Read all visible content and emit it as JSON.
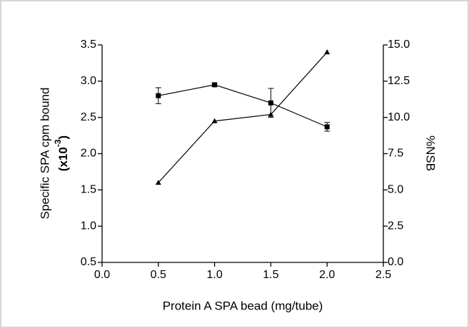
{
  "chart_data": {
    "type": "line",
    "x_label": "Protein A SPA bead (mg/tube)",
    "y_label": "Specific SPA cpm bound",
    "y_multiplier": "(x10",
    "y_multiplier_exp": "-3",
    "y_multiplier_close": ")",
    "y2_label": "%NSB",
    "x": [
      0.5,
      1.0,
      1.5,
      2.0
    ],
    "series": [
      {
        "color": "#000000",
        "marker": "square",
        "values": [
          2.8,
          2.95,
          2.7,
          2.37
        ],
        "errors": [
          0.11,
          0.02,
          0.2,
          0.06
        ]
      },
      {
        "color": "#000000",
        "marker": "triangle",
        "axis": "y2",
        "values": [
          5.5,
          9.75,
          10.2,
          14.5
        ]
      }
    ],
    "xlim": [
      0.0,
      2.5
    ],
    "xticks": [
      {
        "value": 0,
        "label": "0.0"
      },
      0.5,
      {
        "value": 1,
        "label": "1.0"
      },
      1.5,
      {
        "value": 2,
        "label": "2.0"
      },
      2.5
    ],
    "ylim": [
      0.5,
      3.5
    ],
    "yticks": [
      0.5,
      {
        "value": 1,
        "label": "1.0"
      },
      1.5,
      {
        "value": 2,
        "label": "2.0"
      },
      2.5,
      {
        "value": 3,
        "label": "3.0"
      },
      3.5
    ],
    "y2lim": [
      0.0,
      15.0
    ],
    "y2ticks": [
      {
        "value": 0,
        "label": "0.0"
      },
      2.5,
      {
        "value": 5,
        "label": "5.0"
      },
      7.5,
      {
        "value": 10,
        "label": "10.0"
      },
      12.5,
      {
        "value": 15,
        "label": "15.0"
      }
    ]
  }
}
